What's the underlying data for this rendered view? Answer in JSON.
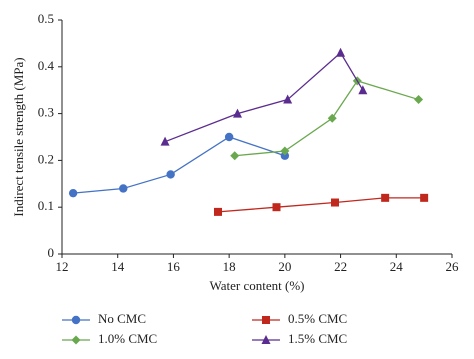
{
  "chart_data": {
    "type": "line",
    "xlabel": "Water content (%)",
    "ylabel": "Indirect tensile strength (MPa)",
    "xlim": [
      12,
      26
    ],
    "xticks": [
      12,
      14,
      16,
      18,
      20,
      22,
      24,
      26
    ],
    "ylim": [
      0,
      0.5
    ],
    "yticks": [
      0,
      0.1,
      0.2,
      0.3,
      0.4,
      0.5
    ],
    "grid": false,
    "legend": "bottom",
    "series": [
      {
        "name": "No CMC",
        "color": "#4472c4",
        "marker": "circle",
        "x": [
          12.4,
          14.2,
          15.9,
          18.0,
          20.0
        ],
        "values": [
          0.13,
          0.14,
          0.17,
          0.25,
          0.21
        ]
      },
      {
        "name": "0.5% CMC",
        "color": "#c0281e",
        "marker": "square",
        "x": [
          17.6,
          19.7,
          21.8,
          23.6,
          25.0
        ],
        "values": [
          0.09,
          0.1,
          0.11,
          0.12,
          0.12
        ]
      },
      {
        "name": "1.0% CMC",
        "color": "#6aa84f",
        "marker": "diamond",
        "x": [
          18.2,
          20.0,
          21.7,
          22.6,
          24.8
        ],
        "values": [
          0.21,
          0.22,
          0.29,
          0.37,
          0.33
        ]
      },
      {
        "name": "1.5% CMC",
        "color": "#5b2c8f",
        "marker": "triangle",
        "x": [
          15.7,
          18.3,
          20.1,
          22.0,
          22.8
        ],
        "values": [
          0.24,
          0.3,
          0.33,
          0.43,
          0.35
        ]
      }
    ]
  }
}
